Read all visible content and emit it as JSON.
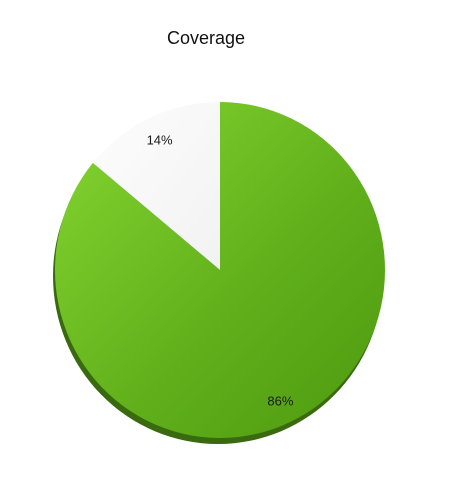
{
  "chart_data": {
    "type": "pie",
    "title": "Coverage",
    "slices": [
      {
        "label": "86%",
        "value": 86,
        "color": "#5fae1a"
      },
      {
        "label": "14%",
        "value": 14,
        "color": "#f8f8f8"
      }
    ],
    "shadow_color": "#3a6a10",
    "legend": "none"
  }
}
